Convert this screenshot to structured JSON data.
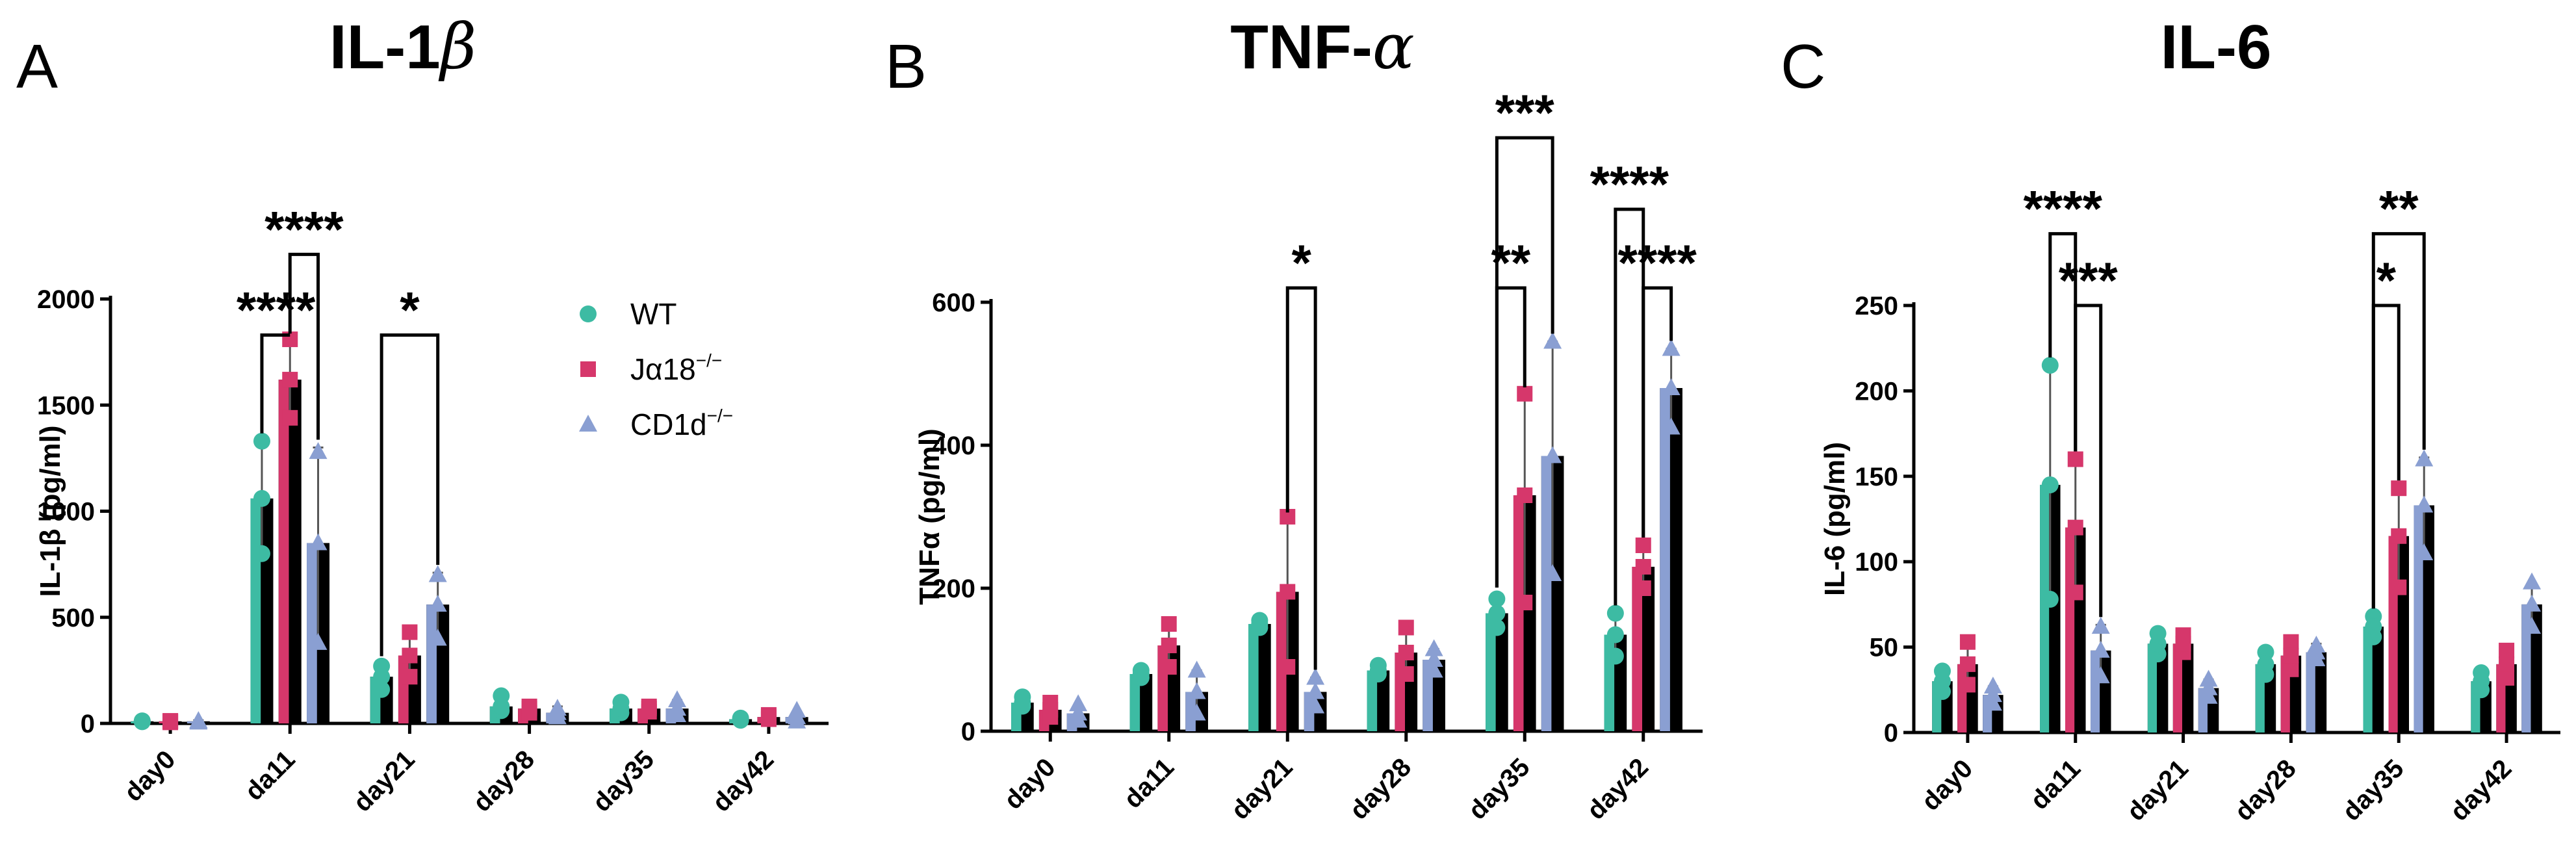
{
  "colors": {
    "WT": "#3dbba3",
    "Ja18": "#d6376b",
    "CD1d": "#8a9fd2",
    "bar": "#000000"
  },
  "legend": {
    "items": [
      {
        "label": "WT",
        "marker": "circle",
        "color": "#3dbba3"
      },
      {
        "label_main": "Jα18",
        "label_sup": "−/−",
        "marker": "square",
        "color": "#d6376b"
      },
      {
        "label_main": "CD1d",
        "label_sup": "−/−",
        "marker": "triangle",
        "color": "#8a9fd2"
      }
    ]
  },
  "chart_data": [
    {
      "type": "bar",
      "panel": "A",
      "title": "IL-1",
      "title_greek": "β",
      "ylabel": "IL-1β (pg/ml)",
      "ylim": [
        0,
        2000
      ],
      "yticks": [
        0,
        500,
        1000,
        1500,
        2000
      ],
      "categories": [
        "day0",
        "da11",
        "day21",
        "day28",
        "day35",
        "day42"
      ],
      "series": [
        {
          "name": "WT",
          "values": [
            10,
            1060,
            220,
            80,
            70,
            20
          ],
          "sd": [
            5,
            270,
            60,
            50,
            40,
            10
          ],
          "points": [
            [
              12,
              8,
              10
            ],
            [
              1330,
              800,
              1060
            ],
            [
              270,
              160,
              220
            ],
            [
              130,
              60,
              80
            ],
            [
              100,
              50,
              70
            ],
            [
              25,
              15,
              20
            ]
          ]
        },
        {
          "name": "Jα18−/−",
          "values": [
            10,
            1620,
            320,
            70,
            70,
            30
          ],
          "sd": [
            5,
            180,
            110,
            20,
            20,
            10
          ],
          "points": [
            [
              12,
              5,
              10
            ],
            [
              1810,
              1440,
              1620
            ],
            [
              430,
              220,
              320
            ],
            [
              80,
              50,
              70
            ],
            [
              80,
              55,
              70
            ],
            [
              40,
              20,
              30
            ]
          ]
        },
        {
          "name": "CD1d−/−",
          "values": [
            10,
            850,
            560,
            50,
            70,
            30
          ],
          "sd": [
            5,
            450,
            150,
            30,
            40,
            20
          ],
          "points": [
            [
              12,
              5,
              10
            ],
            [
              1280,
              380,
              850
            ],
            [
              700,
              400,
              560
            ],
            [
              70,
              30,
              50
            ],
            [
              110,
              40,
              70
            ],
            [
              60,
              10,
              30
            ]
          ]
        }
      ],
      "significance": [
        {
          "label": "****",
          "from": [
            1,
            0
          ],
          "to": [
            1,
            1
          ],
          "level": 1830
        },
        {
          "label": "****",
          "from": [
            1,
            1
          ],
          "to": [
            1,
            2
          ],
          "level": 2210
        },
        {
          "label": "*",
          "from": [
            2,
            0
          ],
          "to": [
            2,
            2
          ],
          "level": 1830
        }
      ]
    },
    {
      "type": "bar",
      "panel": "B",
      "title": "TNF-",
      "title_greek": "α",
      "ylabel": "TNFα (pg/ml)",
      "ylim": [
        0,
        600
      ],
      "yticks": [
        0,
        200,
        400,
        600
      ],
      "categories": [
        "day0",
        "da11",
        "day21",
        "day28",
        "day35",
        "day42"
      ],
      "series": [
        {
          "name": "WT",
          "values": [
            40,
            80,
            150,
            85,
            165,
            135
          ],
          "sd": [
            10,
            8,
            8,
            8,
            25,
            30
          ],
          "points": [
            [
              48,
              35,
              40
            ],
            [
              85,
              75,
              80
            ],
            [
              155,
              145,
              150
            ],
            [
              92,
              80,
              85
            ],
            [
              185,
              145,
              165
            ],
            [
              165,
              105,
              135
            ]
          ]
        },
        {
          "name": "Jα18−/−",
          "values": [
            30,
            120,
            195,
            110,
            330,
            230
          ],
          "sd": [
            10,
            30,
            100,
            35,
            140,
            30
          ],
          "points": [
            [
              40,
              20,
              30
            ],
            [
              150,
              90,
              120
            ],
            [
              300,
              90,
              195
            ],
            [
              145,
              80,
              110
            ],
            [
              472,
              180,
              330
            ],
            [
              260,
              200,
              230
            ]
          ]
        },
        {
          "name": "CD1d−/−",
          "values": [
            25,
            55,
            55,
            100,
            385,
            480
          ],
          "sd": [
            10,
            30,
            20,
            15,
            160,
            55
          ],
          "points": [
            [
              38,
              15,
              25
            ],
            [
              85,
              25,
              55
            ],
            [
              75,
              35,
              55
            ],
            [
              115,
              85,
              100
            ],
            [
              545,
              220,
              385
            ],
            [
              535,
              425,
              480
            ]
          ]
        }
      ],
      "significance": [
        {
          "label": "*",
          "from": [
            2,
            1
          ],
          "to": [
            2,
            2
          ],
          "level": 620
        },
        {
          "label": "**",
          "from": [
            4,
            0
          ],
          "to": [
            4,
            1
          ],
          "level": 620
        },
        {
          "label": "***",
          "from": [
            4,
            0
          ],
          "to": [
            4,
            2
          ],
          "level": 830
        },
        {
          "label": "****",
          "from": [
            5,
            1
          ],
          "to": [
            5,
            2
          ],
          "level": 620
        },
        {
          "label": "****",
          "from": [
            5,
            0
          ],
          "to": [
            5,
            1
          ],
          "level": 730
        }
      ]
    },
    {
      "type": "bar",
      "panel": "C",
      "title": "IL-6",
      "title_greek": "",
      "ylabel": "IL-6 (pg/ml)",
      "ylim": [
        0,
        250
      ],
      "yticks": [
        0,
        50,
        100,
        150,
        200,
        250
      ],
      "categories": [
        "day0",
        "da11",
        "day21",
        "day28",
        "day35",
        "day42"
      ],
      "series": [
        {
          "name": "WT",
          "values": [
            30,
            145,
            52,
            40,
            62,
            30
          ],
          "sd": [
            5,
            70,
            6,
            6,
            6,
            5
          ],
          "points": [
            [
              36,
              24,
              30
            ],
            [
              215,
              78,
              145
            ],
            [
              58,
              46,
              52
            ],
            [
              47,
              34,
              40
            ],
            [
              68,
              56,
              62
            ],
            [
              35,
              25,
              30
            ]
          ]
        },
        {
          "name": "Jα18−/−",
          "values": [
            40,
            120,
            52,
            45,
            115,
            40
          ],
          "sd": [
            12,
            40,
            5,
            8,
            28,
            8
          ],
          "points": [
            [
              53,
              28,
              40
            ],
            [
              160,
              82,
              120
            ],
            [
              57,
              47,
              52
            ],
            [
              53,
              37,
              45
            ],
            [
              143,
              85,
              115
            ],
            [
              48,
              32,
              40
            ]
          ]
        },
        {
          "name": "CD1d−/−",
          "values": [
            22,
            48,
            26,
            47,
            133,
            75
          ],
          "sd": [
            5,
            15,
            5,
            5,
            28,
            12
          ],
          "points": [
            [
              27,
              17,
              22
            ],
            [
              62,
              33,
              48
            ],
            [
              31,
              21,
              26
            ],
            [
              51,
              43,
              47
            ],
            [
              160,
              105,
              133
            ],
            [
              88,
              62,
              75
            ]
          ]
        }
      ],
      "significance": [
        {
          "label": "****",
          "from": [
            1,
            0
          ],
          "to": [
            1,
            1
          ],
          "level": 292
        },
        {
          "label": "***",
          "from": [
            1,
            1
          ],
          "to": [
            1,
            2
          ],
          "level": 250
        },
        {
          "label": "*",
          "from": [
            4,
            0
          ],
          "to": [
            4,
            1
          ],
          "level": 250
        },
        {
          "label": "**",
          "from": [
            4,
            0
          ],
          "to": [
            4,
            2
          ],
          "level": 292
        }
      ]
    }
  ]
}
